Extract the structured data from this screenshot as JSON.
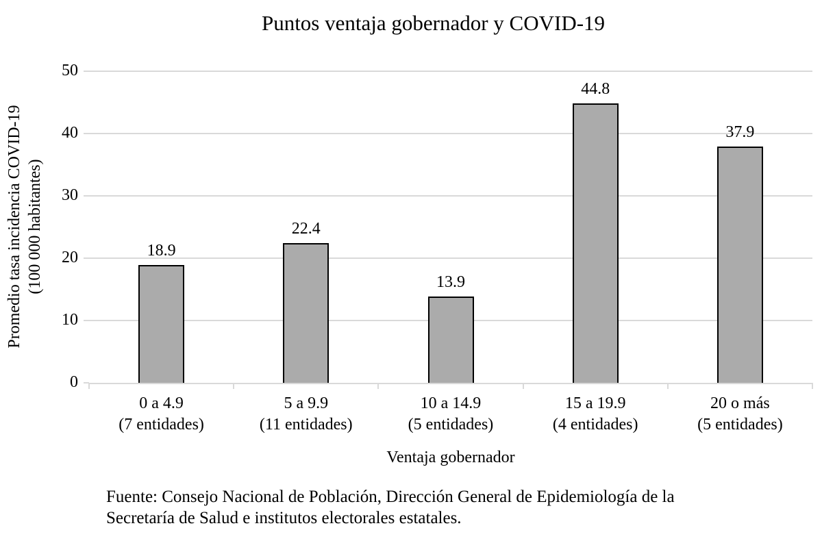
{
  "chart_data": {
    "type": "bar",
    "title": "Puntos ventaja gobernador y COVID-19",
    "xlabel": "Ventaja gobernador",
    "ylabel_lines": [
      "Promedio tasa incidencia COVID-19",
      "(100 000 habitantes)"
    ],
    "categories": [
      "0 a 4.9\n(7 entidades)",
      "5 a 9.9\n(11 entidades)",
      "10 a 14.9\n(5 entidades)",
      "15 a 19.9\n(4 entidades)",
      "20 o más\n(5 entidades)"
    ],
    "values": [
      18.9,
      22.4,
      13.9,
      44.8,
      37.9
    ],
    "value_labels": [
      "18.9",
      "22.4",
      "13.9",
      "44.8",
      "37.9"
    ],
    "ylim": [
      0,
      50
    ],
    "ytick_step": 10,
    "ytick_labels": [
      "0",
      "10",
      "20",
      "30",
      "40",
      "50"
    ],
    "grid": "horizontal",
    "legend": "none",
    "colors": {
      "bar_fill": "#ABABAB",
      "bar_border": "#000000",
      "gridline": "#D9D9D9",
      "axis_line": "#D9D9D9",
      "text": "#000000",
      "background": "#FFFFFF"
    }
  },
  "source_note": "Fuente: Consejo Nacional de Población, Dirección General de Epidemiología de la\nSecretaría de Salud e institutos electorales estatales."
}
